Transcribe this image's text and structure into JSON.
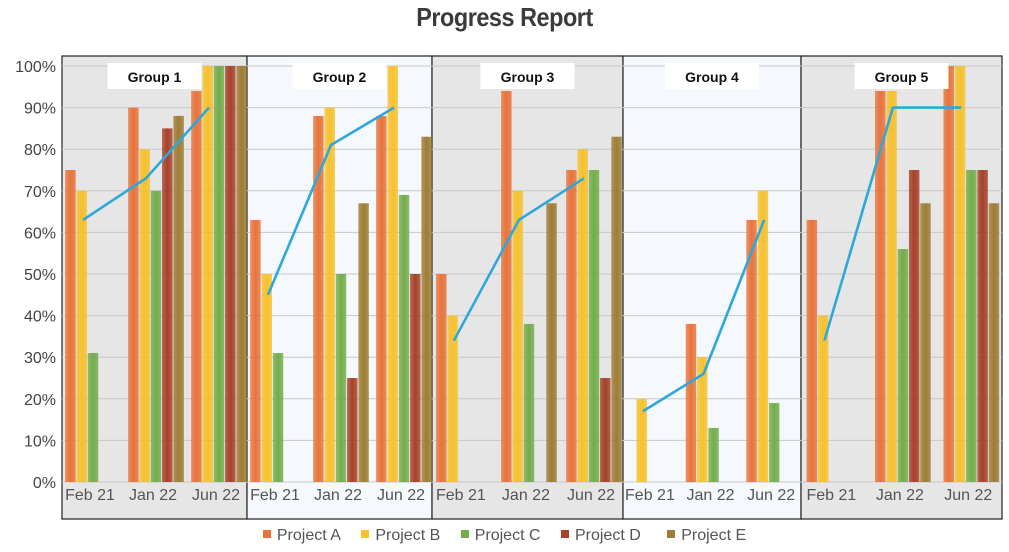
{
  "chart_data": {
    "type": "bar",
    "title": "Progress Report",
    "ylim": [
      0,
      100
    ],
    "y_ticks": [
      "0%",
      "10%",
      "20%",
      "30%",
      "40%",
      "50%",
      "60%",
      "70%",
      "80%",
      "90%",
      "100%"
    ],
    "y_tick_values": [
      0,
      10,
      20,
      30,
      40,
      50,
      60,
      70,
      80,
      90,
      100
    ],
    "grid": true,
    "legend_position": "bottom",
    "series_names": [
      "Project A",
      "Project B",
      "Project C",
      "Project D",
      "Project E"
    ],
    "series_colors": [
      "#e8743b",
      "#f6c12d",
      "#74ad4b",
      "#a7412a",
      "#9e7d34"
    ],
    "trend_color": "#2ea8dc",
    "groups": [
      {
        "label": "Group 1",
        "categories": [
          "Feb 21",
          "Jan 22",
          "Jun 22"
        ],
        "values": [
          [
            75,
            70,
            31,
            0,
            0
          ],
          [
            90,
            80,
            70,
            85,
            88
          ],
          [
            94,
            100,
            100,
            100,
            100
          ]
        ],
        "trend": [
          63,
          73,
          90
        ],
        "background": "#e6e6e6"
      },
      {
        "label": "Group 2",
        "categories": [
          "Feb 21",
          "Jan 22",
          "Jun 22"
        ],
        "values": [
          [
            63,
            50,
            31,
            0,
            0
          ],
          [
            88,
            90,
            50,
            25,
            67
          ],
          [
            88,
            100,
            69,
            50,
            83
          ]
        ],
        "trend": [
          45,
          81,
          90
        ],
        "background": "#f5f8fd"
      },
      {
        "label": "Group 3",
        "categories": [
          "Feb 21",
          "Jan 22",
          "Jun 22"
        ],
        "values": [
          [
            50,
            40,
            0,
            0,
            0
          ],
          [
            94,
            70,
            38,
            0,
            67
          ],
          [
            75,
            80,
            75,
            25,
            83
          ]
        ],
        "trend": [
          34,
          63,
          73
        ],
        "background": "#e6e6e6"
      },
      {
        "label": "Group 4",
        "categories": [
          "Feb 21",
          "Jan 22",
          "Jun 22"
        ],
        "values": [
          [
            0,
            20,
            0,
            0,
            0
          ],
          [
            38,
            30,
            13,
            0,
            0
          ],
          [
            63,
            70,
            19,
            0,
            0
          ]
        ],
        "trend": [
          17,
          26,
          63
        ],
        "background": "#f5f8fd"
      },
      {
        "label": "Group 5",
        "categories": [
          "Feb 21",
          "Jan 22",
          "Jun 22"
        ],
        "values": [
          [
            63,
            40,
            0,
            0,
            0
          ],
          [
            94,
            94,
            56,
            75,
            67
          ],
          [
            100,
            100,
            75,
            75,
            67
          ]
        ],
        "trend": [
          34,
          90,
          90
        ],
        "background": "#e6e6e6"
      }
    ]
  }
}
